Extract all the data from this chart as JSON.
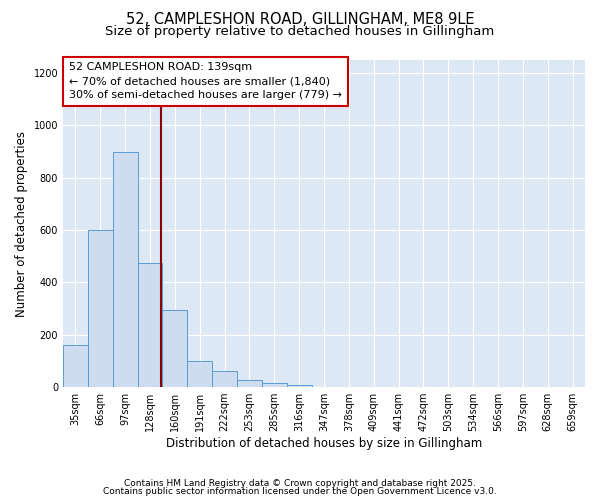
{
  "title": "52, CAMPLESHON ROAD, GILLINGHAM, ME8 9LE",
  "subtitle": "Size of property relative to detached houses in Gillingham",
  "xlabel": "Distribution of detached houses by size in Gillingham",
  "ylabel": "Number of detached properties",
  "categories": [
    "35sqm",
    "66sqm",
    "97sqm",
    "128sqm",
    "160sqm",
    "191sqm",
    "222sqm",
    "253sqm",
    "285sqm",
    "316sqm",
    "347sqm",
    "378sqm",
    "409sqm",
    "441sqm",
    "472sqm",
    "503sqm",
    "534sqm",
    "566sqm",
    "597sqm",
    "628sqm",
    "659sqm"
  ],
  "values": [
    160,
    600,
    900,
    475,
    295,
    100,
    62,
    28,
    15,
    8,
    0,
    0,
    0,
    0,
    0,
    0,
    0,
    0,
    0,
    0,
    0
  ],
  "bar_color": "#cddcef",
  "bar_edge_color": "#5b9bd5",
  "background_color": "#dde8f5",
  "grid_color": "#ffffff",
  "vline_color": "#8b0000",
  "vline_x": 3.45,
  "annotation_line1": "52 CAMPLESHON ROAD: 139sqm",
  "annotation_line2": "← 70% of detached houses are smaller (1,840)",
  "annotation_line3": "30% of semi-detached houses are larger (779) →",
  "footer1": "Contains HM Land Registry data © Crown copyright and database right 2025.",
  "footer2": "Contains public sector information licensed under the Open Government Licence v3.0.",
  "ylim": [
    0,
    1250
  ],
  "yticks": [
    0,
    200,
    400,
    600,
    800,
    1000,
    1200
  ],
  "title_fontsize": 10.5,
  "subtitle_fontsize": 9.5,
  "axis_label_fontsize": 8.5,
  "tick_fontsize": 7,
  "annotation_fontsize": 8,
  "footer_fontsize": 6.5
}
